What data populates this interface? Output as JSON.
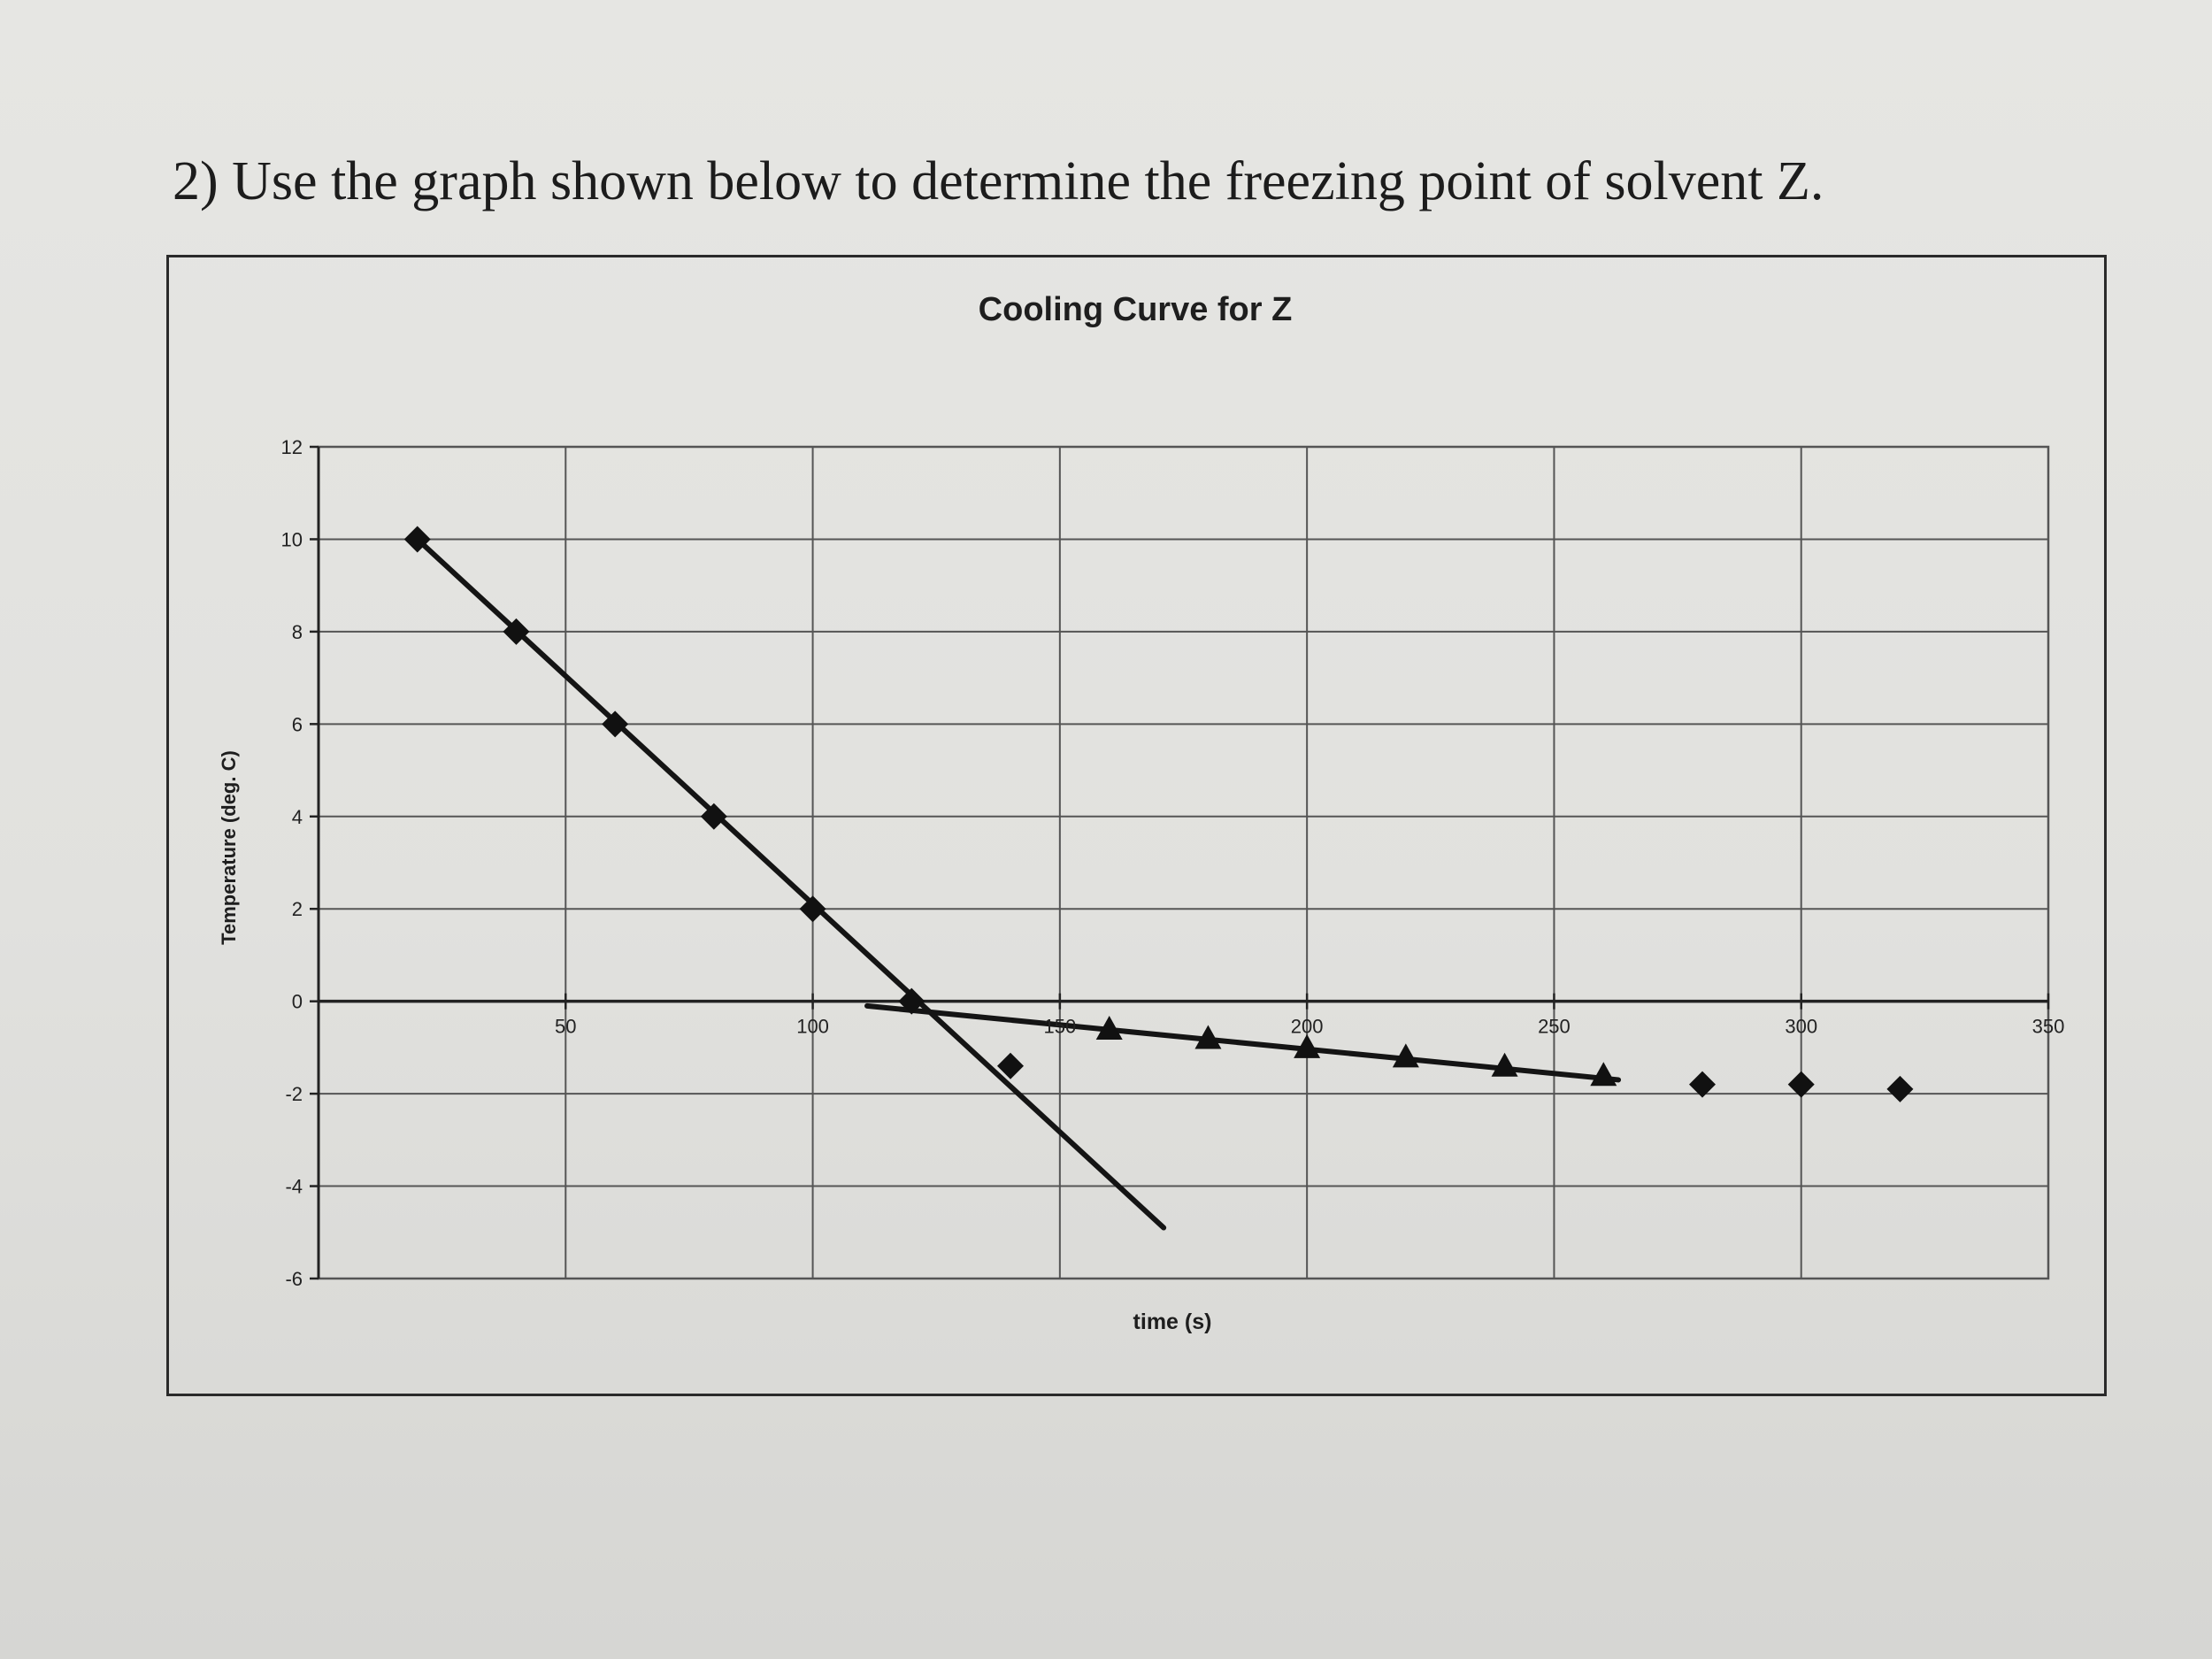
{
  "question": {
    "text": "2)  Use the graph shown below to determine the freezing point of solvent Z."
  },
  "chart_data": {
    "type": "scatter",
    "title": "Cooling Curve for Z",
    "xlabel": "time (s)",
    "ylabel": "Temperature (deg. C)",
    "xlim": [
      0,
      350
    ],
    "ylim": [
      -6,
      12
    ],
    "xticks": [
      0,
      50,
      100,
      150,
      200,
      250,
      300,
      350
    ],
    "xtick_labels": [
      "",
      "50",
      "100",
      "150",
      "200",
      "250",
      "300",
      "350"
    ],
    "yticks": [
      -6,
      -4,
      -2,
      0,
      2,
      4,
      6,
      8,
      10,
      12
    ],
    "ytick_labels": [
      "-6",
      "-4",
      "-2",
      "0",
      "2",
      "4",
      "6",
      "8",
      "10",
      "12"
    ],
    "grid": true,
    "legend": "none",
    "series": [
      {
        "marker": "diamond",
        "points": [
          [
            20,
            10
          ],
          [
            40,
            8
          ],
          [
            60,
            6
          ],
          [
            80,
            4
          ],
          [
            100,
            2
          ],
          [
            120,
            0
          ],
          [
            140,
            -1.4
          ],
          [
            280,
            -1.8
          ],
          [
            300,
            -1.8
          ],
          [
            320,
            -1.9
          ]
        ]
      },
      {
        "marker": "triangle",
        "points": [
          [
            160,
            -0.6
          ],
          [
            180,
            -0.8
          ],
          [
            200,
            -1.0
          ],
          [
            220,
            -1.2
          ],
          [
            240,
            -1.4
          ],
          [
            260,
            -1.6
          ]
        ]
      }
    ],
    "trendlines": [
      {
        "from": [
          20,
          10
        ],
        "to": [
          171,
          -4.9
        ]
      },
      {
        "from": [
          111,
          -0.1
        ],
        "to": [
          263,
          -1.7
        ]
      }
    ],
    "colors": {
      "marker": "#111111",
      "line": "#141414",
      "grid": "#555555",
      "axis": "#222222"
    }
  }
}
